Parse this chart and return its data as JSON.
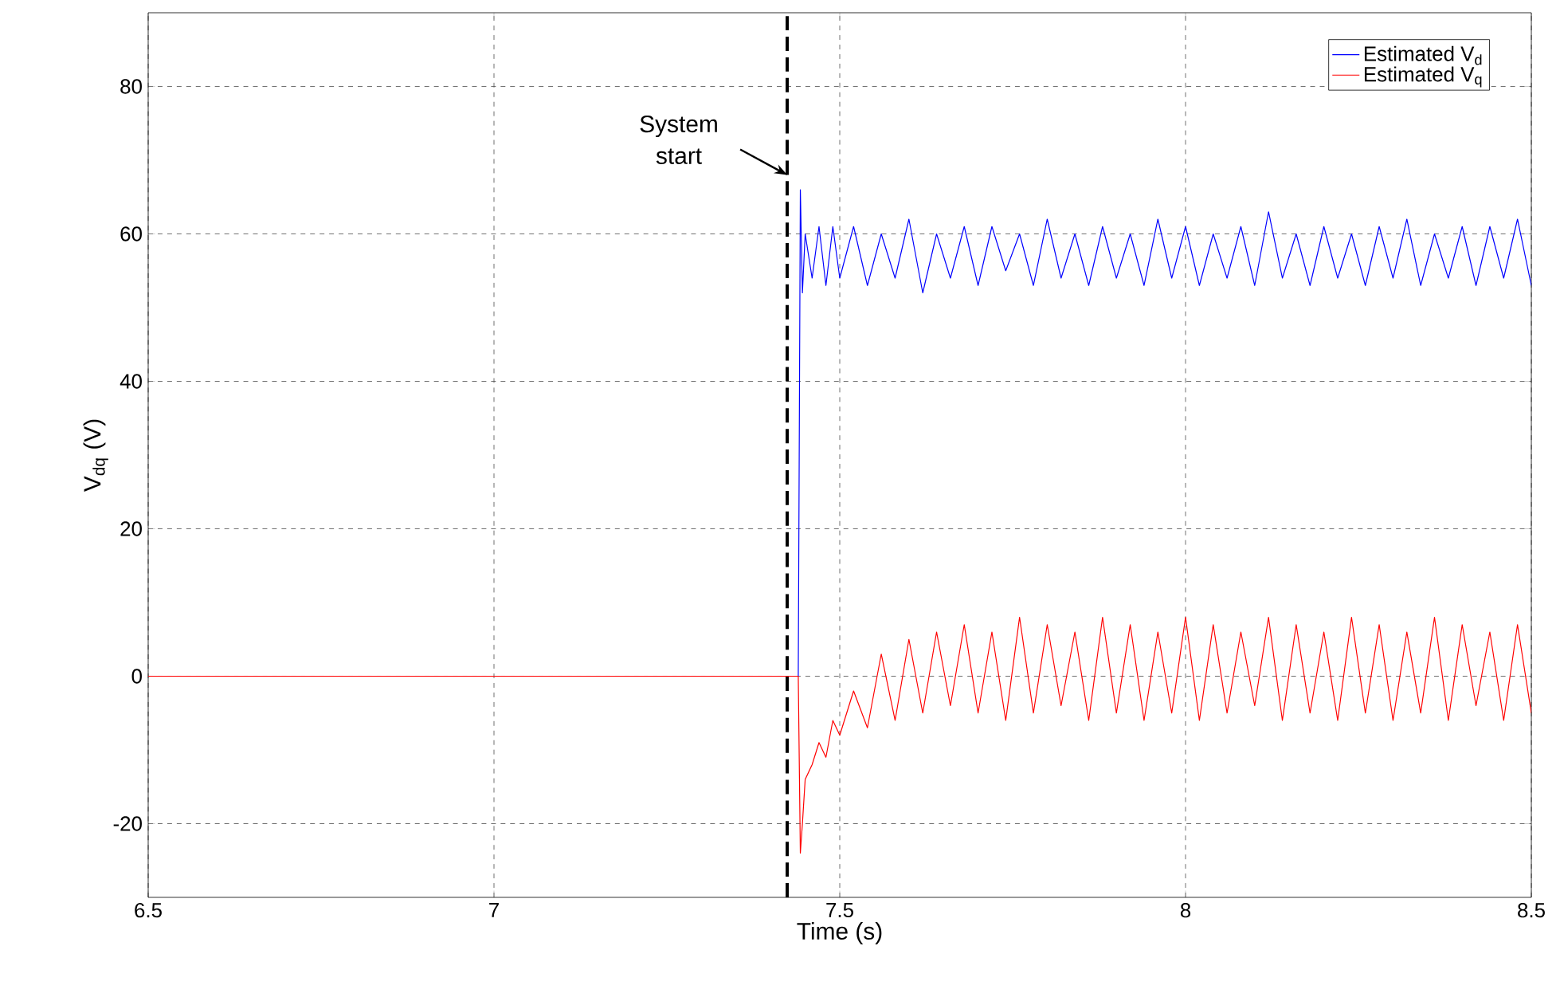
{
  "chart_data": {
    "type": "line",
    "xlabel": "Time (s)",
    "ylabel": "V$_{dq}$ (V)",
    "x": [
      6.5,
      7.44,
      7.443,
      7.446,
      7.45,
      7.46,
      7.47,
      7.48,
      7.49,
      7.5,
      7.52,
      7.54,
      7.56,
      7.58,
      7.6,
      7.62,
      7.64,
      7.66,
      7.68,
      7.7,
      7.72,
      7.74,
      7.76,
      7.78,
      7.8,
      7.82,
      7.84,
      7.86,
      7.88,
      7.9,
      7.92,
      7.94,
      7.96,
      7.98,
      8.0,
      8.02,
      8.04,
      8.06,
      8.08,
      8.1,
      8.12,
      8.14,
      8.16,
      8.18,
      8.2,
      8.22,
      8.24,
      8.26,
      8.28,
      8.3,
      8.32,
      8.34,
      8.36,
      8.38,
      8.4,
      8.42,
      8.44,
      8.46,
      8.48,
      8.5
    ],
    "series": [
      {
        "name": "Estimated V$_{d}$",
        "color": "#0000ff",
        "values": [
          0,
          0,
          66,
          52,
          60,
          54,
          61,
          53,
          61,
          54,
          61,
          53,
          60,
          54,
          62,
          52,
          60,
          54,
          61,
          53,
          61,
          55,
          60,
          53,
          62,
          54,
          60,
          53,
          61,
          54,
          60,
          53,
          62,
          54,
          61,
          53,
          60,
          54,
          61,
          53,
          63,
          54,
          60,
          53,
          61,
          54,
          60,
          53,
          61,
          54,
          62,
          53,
          60,
          54,
          61,
          53,
          61,
          54,
          62,
          53
        ]
      },
      {
        "name": "Estimated V$_{q}$",
        "color": "#ff0000",
        "values": [
          0,
          0,
          -24,
          -20,
          -14,
          -12,
          -9,
          -11,
          -6,
          -8,
          -2,
          -7,
          3,
          -6,
          5,
          -5,
          6,
          -4,
          7,
          -5,
          6,
          -6,
          8,
          -5,
          7,
          -4,
          6,
          -6,
          8,
          -5,
          7,
          -6,
          6,
          -5,
          8,
          -6,
          7,
          -5,
          6,
          -4,
          8,
          -6,
          7,
          -5,
          6,
          -6,
          8,
          -5,
          7,
          -6,
          6,
          -5,
          8,
          -6,
          7,
          -4,
          6,
          -6,
          7,
          -5
        ]
      }
    ],
    "xlim": [
      6.5,
      8.5
    ],
    "ylim": [
      -30,
      90
    ],
    "xticks": [
      6.5,
      7,
      7.5,
      8,
      8.5
    ],
    "yticks": [
      -20,
      0,
      20,
      40,
      60,
      80
    ],
    "grid": true,
    "legend": "top right",
    "ref_lines": [
      {
        "axis": "x",
        "value": 7.424,
        "color": "#000000",
        "line_style": "dashed"
      }
    ],
    "annotations": [
      {
        "text": "System start",
        "x": 7.424,
        "y": 68
      }
    ]
  }
}
